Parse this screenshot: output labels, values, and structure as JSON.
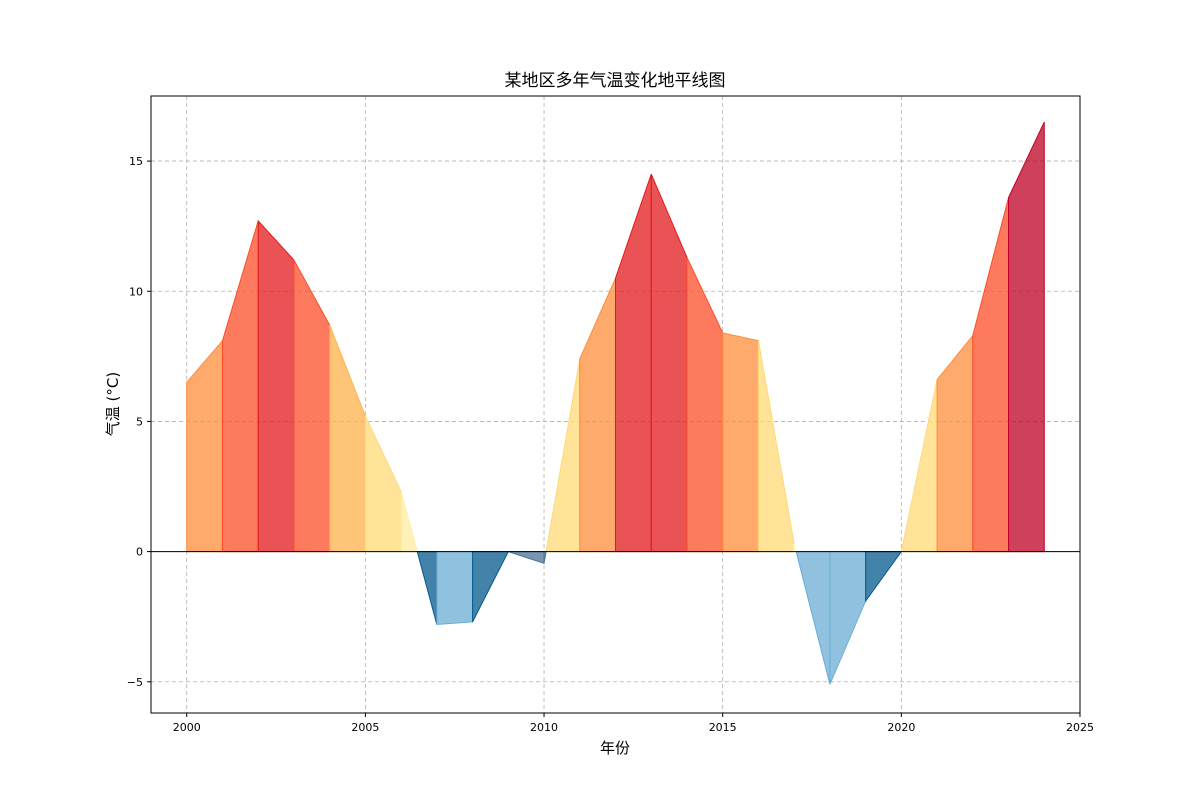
{
  "chart_data": {
    "type": "area",
    "title": "某地区多年气温变化地平线图",
    "xlabel": "年份",
    "ylabel": "气温 (°C)",
    "xlim": [
      1999,
      2025
    ],
    "ylim": [
      -6.2,
      17.5
    ],
    "xticks": [
      2000,
      2005,
      2010,
      2015,
      2020,
      2025
    ],
    "yticks": [
      -5,
      0,
      5,
      10,
      15
    ],
    "grid": true,
    "baseline": 0,
    "x": [
      2000,
      2001,
      2002,
      2003,
      2004,
      2005,
      2006,
      2007,
      2008,
      2009,
      2010,
      2011,
      2012,
      2013,
      2014,
      2015,
      2016,
      2017,
      2018,
      2019,
      2020,
      2021,
      2022,
      2023,
      2024
    ],
    "values": [
      6.5,
      8.1,
      12.7,
      11.2,
      8.7,
      5.2,
      2.3,
      -2.8,
      -2.7,
      0.0,
      -0.45,
      7.4,
      10.5,
      14.5,
      11.3,
      8.4,
      8.1,
      0.3,
      -5.1,
      -1.9,
      0.0,
      6.6,
      8.3,
      13.6,
      16.5
    ],
    "positive_colors": [
      "#ffffcc",
      "#ffeda0",
      "#fed976",
      "#feb24c",
      "#fd8d3c",
      "#fc4e2a",
      "#e31a1c",
      "#bd0026",
      "#a50026"
    ],
    "negative_colors": [
      "#a6bddb",
      "#9ecae1",
      "#6baed6",
      "#3690c0",
      "#045a8d",
      "#4a7398"
    ],
    "fill_alpha": 0.75,
    "color_note_range": [
      -5,
      16.5
    ]
  }
}
